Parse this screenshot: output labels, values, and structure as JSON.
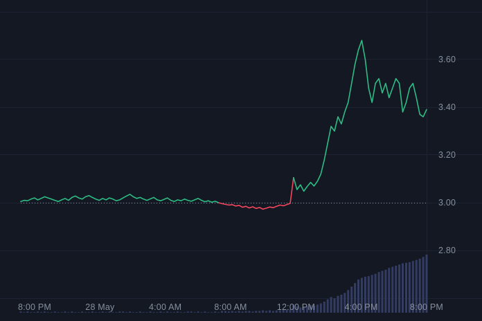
{
  "chart_data": {
    "type": "line",
    "title": "",
    "baseline": 3.0,
    "ylim": [
      2.6,
      3.82
    ],
    "grid_levels": [
      3.8,
      3.6,
      3.4,
      3.2,
      3.0,
      2.8,
      2.6
    ],
    "y_axis": {
      "ticks": [
        {
          "label": "3.60",
          "value": 3.6
        },
        {
          "label": "3.40",
          "value": 3.4
        },
        {
          "label": "3.20",
          "value": 3.2
        },
        {
          "label": "3.00",
          "value": 3.0
        },
        {
          "label": "2.80",
          "value": 2.8
        }
      ]
    },
    "x_axis": {
      "ticks": [
        {
          "label": "8:00 PM",
          "t": 0
        },
        {
          "label": "28 May",
          "t": 0.1667
        },
        {
          "label": "4:00 AM",
          "t": 0.3333
        },
        {
          "label": "8:00 AM",
          "t": 0.5
        },
        {
          "label": "12:00 PM",
          "t": 0.6667
        },
        {
          "label": "4:00 PM",
          "t": 0.8333
        },
        {
          "label": "8:00 PM",
          "t": 1
        }
      ]
    },
    "prices": [
      3.005,
      3.01,
      3.008,
      3.015,
      3.02,
      3.012,
      3.018,
      3.025,
      3.02,
      3.015,
      3.01,
      3.005,
      3.012,
      3.018,
      3.01,
      3.022,
      3.028,
      3.02,
      3.015,
      3.025,
      3.03,
      3.022,
      3.015,
      3.01,
      3.018,
      3.012,
      3.02,
      3.015,
      3.008,
      3.012,
      3.02,
      3.028,
      3.035,
      3.025,
      3.018,
      3.022,
      3.015,
      3.01,
      3.016,
      3.022,
      3.012,
      3.008,
      3.014,
      3.02,
      3.01,
      3.005,
      3.012,
      3.008,
      3.015,
      3.01,
      3.006,
      3.012,
      3.018,
      3.01,
      3.004,
      3.008,
      3.002,
      3.006,
      3.0,
      2.996,
      2.993,
      2.99,
      2.992,
      2.986,
      2.989,
      2.981,
      2.985,
      2.978,
      2.983,
      2.976,
      2.98,
      2.973,
      2.977,
      2.982,
      2.979,
      2.985,
      2.99,
      2.987,
      2.992,
      2.997,
      3.105,
      3.055,
      3.075,
      3.048,
      3.068,
      3.085,
      3.07,
      3.09,
      3.12,
      3.18,
      3.25,
      3.32,
      3.3,
      3.36,
      3.33,
      3.38,
      3.42,
      3.5,
      3.58,
      3.64,
      3.68,
      3.6,
      3.48,
      3.42,
      3.5,
      3.52,
      3.46,
      3.5,
      3.44,
      3.48,
      3.52,
      3.5,
      3.38,
      3.42,
      3.48,
      3.5,
      3.44,
      3.37,
      3.36,
      3.39
    ],
    "volumes": [
      2,
      1,
      2,
      1,
      1,
      2,
      1,
      2,
      1,
      1,
      2,
      1,
      1,
      2,
      1,
      2,
      1,
      1,
      2,
      1,
      1,
      2,
      1,
      1,
      2,
      1,
      2,
      1,
      1,
      2,
      2,
      1,
      2,
      1,
      1,
      2,
      1,
      1,
      2,
      1,
      1,
      2,
      1,
      2,
      1,
      1,
      2,
      1,
      1,
      2,
      2,
      1,
      2,
      1,
      2,
      1,
      1,
      2,
      1,
      3,
      3,
      2,
      3,
      2,
      3,
      2,
      3,
      3,
      2,
      3,
      3,
      4,
      3,
      4,
      3,
      4,
      4,
      5,
      5,
      6,
      14,
      11,
      9,
      10,
      11,
      13,
      12,
      14,
      16,
      19,
      23,
      27,
      25,
      29,
      31,
      34,
      39,
      45,
      51,
      57,
      60,
      62,
      63,
      65,
      67,
      70,
      72,
      74,
      77,
      79,
      81,
      83,
      85,
      86,
      87,
      89,
      91,
      93,
      96,
      100
    ],
    "colors": {
      "up": "#2ebd85",
      "down": "#f6465d",
      "volume": "#333c62",
      "grid": "#1d2332",
      "baseline": "#8f96a6",
      "background": "#131822",
      "label": "#87909f"
    }
  }
}
